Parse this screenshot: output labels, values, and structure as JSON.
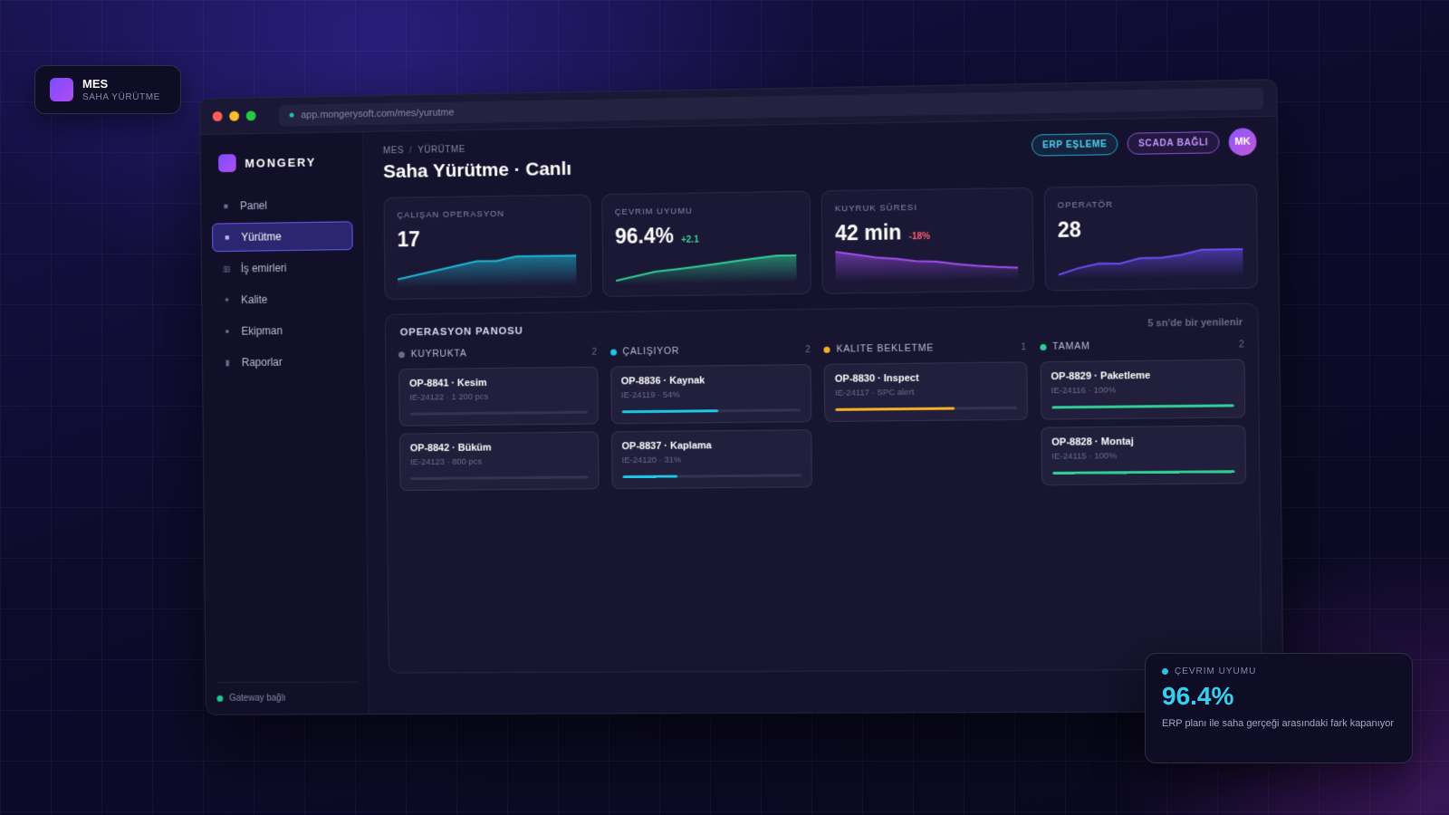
{
  "badge": {
    "title": "MES",
    "subtitle": "SAHA YÜRÜTME"
  },
  "browser": {
    "url": "app.mongerysoft.com/mes/yurutme"
  },
  "sidebar": {
    "brand": "MONGERY",
    "items": [
      {
        "label": "Panel",
        "icon": "grid-icon",
        "active": false
      },
      {
        "label": "Yürütme",
        "icon": "square-icon",
        "active": true
      },
      {
        "label": "İş emirleri",
        "icon": "list-icon",
        "active": false
      },
      {
        "label": "Kalite",
        "icon": "sparkle-icon",
        "active": false
      },
      {
        "label": "Ekipman",
        "icon": "circle-icon",
        "active": false
      },
      {
        "label": "Raporlar",
        "icon": "report-icon",
        "active": false
      }
    ],
    "gateway": "Gateway bağlı"
  },
  "header": {
    "breadcrumb": [
      "MES",
      "YÜRÜTME"
    ],
    "title": "Saha Yürütme · Canlı",
    "buttons": {
      "erp": "ERP EŞLEME",
      "scada": "SCADA BAĞLI"
    },
    "avatar": "MK"
  },
  "kpis": [
    {
      "label": "ÇALIŞAN OPERASYON",
      "value": "17",
      "delta": "",
      "color": "#1fb7d4",
      "trend": [
        2,
        3,
        4,
        5,
        6,
        6,
        7,
        7,
        7,
        7
      ]
    },
    {
      "label": "ÇEVRIM UYUMU",
      "value": "96.4%",
      "delta": "+2.1",
      "delta_dir": "up",
      "color": "#2fcf93",
      "trend": [
        1,
        2,
        3,
        3.5,
        4,
        4.6,
        5.2,
        5.8,
        6.3,
        6.3
      ]
    },
    {
      "label": "KUYRUK SÜRESI",
      "value": "42 min",
      "delta": "-18%",
      "delta_dir": "down",
      "color": "#a24df0",
      "trend": [
        7,
        6.3,
        5.6,
        5.2,
        4.6,
        4.4,
        3.8,
        3.3,
        3,
        2.8
      ]
    },
    {
      "label": "OPERATÖR",
      "value": "28",
      "delta": "",
      "color": "#6a4cf0",
      "trend": [
        1,
        2.5,
        3.5,
        3.4,
        4.6,
        4.6,
        5.2,
        6.3,
        6.3,
        6.3
      ]
    }
  ],
  "board": {
    "title": "OPERASYON PANOSU",
    "refresh": "5 sn'de bir yenilenir",
    "columns": [
      {
        "name": "KUYRUKTA",
        "count": "2",
        "color": "#6e6b8c",
        "bar_color": "#4a4868",
        "cards": [
          {
            "title": "OP-8841 · Kesim",
            "meta": "IE-24122 · 1 200 pcs",
            "progress": 0
          },
          {
            "title": "OP-8842 · Büküm",
            "meta": "IE-24123 · 800 pcs",
            "progress": 0
          }
        ]
      },
      {
        "name": "ÇALIŞIYOR",
        "count": "2",
        "color": "#1ec8e6",
        "bar_color": "#1ec8e6",
        "cards": [
          {
            "title": "OP-8836 · Kaynak",
            "meta": "IE-24119 · 54%",
            "progress": 54
          },
          {
            "title": "OP-8837 · Kaplama",
            "meta": "IE-24120 · 31%",
            "progress": 31
          }
        ]
      },
      {
        "name": "KALITE BEKLETME",
        "count": "1",
        "color": "#f4b326",
        "bar_color": "#f4b326",
        "cards": [
          {
            "title": "OP-8830 · Inspect",
            "meta": "IE-24117 · SPC alert",
            "progress": 66
          }
        ]
      },
      {
        "name": "TAMAM",
        "count": "2",
        "color": "#2fcf93",
        "bar_color": "#2fcf93",
        "cards": [
          {
            "title": "OP-8829 · Paketleme",
            "meta": "IE-24116 · 100%",
            "progress": 100
          },
          {
            "title": "OP-8828 · Montaj",
            "meta": "IE-24115 · 100%",
            "progress": 100
          }
        ]
      }
    ]
  },
  "floating": {
    "label": "ÇEVRIM UYUMU",
    "value": "96.4%",
    "description": "ERP planı ile saha gerçeği arasındaki fark kapanıyor"
  }
}
